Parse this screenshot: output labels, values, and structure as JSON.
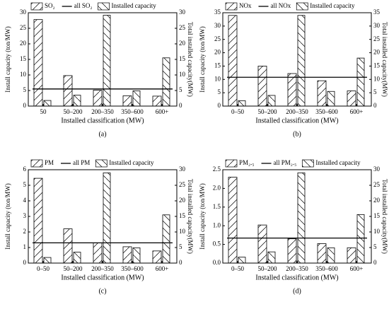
{
  "chart_data": [
    {
      "type": "bar",
      "label": "(a)",
      "x_label": "Installed classification (MW)",
      "y_label": "Install capacity (ton/MW)",
      "y2_label": "Total installed capacity(MW)",
      "categories": [
        "50",
        "50–200",
        "200–350",
        "350–600",
        "600+"
      ],
      "series": [
        {
          "name": "SO₂",
          "color": "#000000",
          "values": [
            27.8,
            9.8,
            5.1,
            3.3,
            3.2
          ]
        },
        {
          "name": "Installed capacity",
          "color": "#000000",
          "axis": "y2",
          "values": [
            1.8,
            3.5,
            29.2,
            4.9,
            15.5
          ]
        }
      ],
      "reference_line": {
        "name": "all SO₂",
        "value": 5.5
      },
      "ylim": [
        0,
        30
      ],
      "yticks": [
        0,
        5,
        10,
        15,
        20,
        25,
        30
      ],
      "y2lim": [
        0,
        30
      ],
      "y2ticks": [
        0,
        5,
        10,
        15,
        20,
        25,
        30
      ]
    },
    {
      "type": "bar",
      "label": "(b)",
      "x_label": "Installed classification (MW)",
      "y_label": "Install capacity (ton/MW)",
      "y2_label": "Total installed capacity(MW)",
      "categories": [
        "0–50",
        "50–200",
        "200–350",
        "350–600",
        "600+"
      ],
      "series": [
        {
          "name": "NOx",
          "color": "#000000",
          "values": [
            34,
            15,
            12.2,
            9.5,
            5.7
          ]
        },
        {
          "name": "Installed capacity",
          "color": "#000000",
          "axis": "y2",
          "values": [
            2,
            4,
            34,
            5.5,
            18
          ]
        }
      ],
      "reference_line": {
        "name": "all NOx",
        "value": 10.8
      },
      "ylim": [
        0,
        35
      ],
      "yticks": [
        0,
        5,
        10,
        15,
        20,
        25,
        30,
        35
      ],
      "y2lim": [
        0,
        35
      ],
      "y2ticks": [
        0,
        5,
        10,
        15,
        20,
        25,
        30,
        35
      ]
    },
    {
      "type": "bar",
      "label": "(c)",
      "x_label": "Installed classification (MW)",
      "y_label": "Install capacity (ton/MW)",
      "y2_label": "Total installed capacity(MW)",
      "categories": [
        "0–50",
        "50–200",
        "200–350",
        "350–600",
        "600+"
      ],
      "series": [
        {
          "name": "PM",
          "color": "#000000",
          "values": [
            5.45,
            2.2,
            1.3,
            1.05,
            0.78
          ]
        },
        {
          "name": "Installed capacity",
          "color": "#000000",
          "axis": "y2",
          "values": [
            1.8,
            3.5,
            29,
            4.9,
            15.5
          ]
        }
      ],
      "reference_line": {
        "name": "all PM",
        "value": 1.3
      },
      "ylim": [
        0,
        6
      ],
      "yticks": [
        0,
        1,
        2,
        3,
        4,
        5,
        6
      ],
      "y2lim": [
        0,
        30
      ],
      "y2ticks": [
        0,
        5,
        10,
        15,
        20,
        25,
        30
      ]
    },
    {
      "type": "bar",
      "label": "(d)",
      "x_label": "Installed classification (MW)",
      "y_label": "Install capacity (ton/MW)",
      "y2_label": "Total installed capacity(MW)",
      "categories": [
        "0–50",
        "50–200",
        "200–350",
        "350–600",
        "600+"
      ],
      "series": [
        {
          "name": "PM₂.₅",
          "color": "#000000",
          "values": [
            2.3,
            1.02,
            0.65,
            0.52,
            0.41
          ]
        },
        {
          "name": "Installed capacity",
          "color": "#000000",
          "axis": "y2",
          "values": [
            1.9,
            3.6,
            29,
            4.9,
            15.6
          ]
        }
      ],
      "reference_line": {
        "name": "all PM₂.₅",
        "value": 0.67
      },
      "ylim": [
        0,
        2.5
      ],
      "yticks": [
        {
          "value": 0,
          "label": "0.0"
        },
        0.5,
        {
          "value": 1,
          "label": "1.0"
        },
        1.5,
        {
          "value": 2,
          "label": "2.0"
        },
        2.5
      ],
      "y2lim": [
        0,
        30
      ],
      "y2ticks": [
        0,
        5,
        10,
        15,
        20,
        25,
        30
      ]
    }
  ]
}
